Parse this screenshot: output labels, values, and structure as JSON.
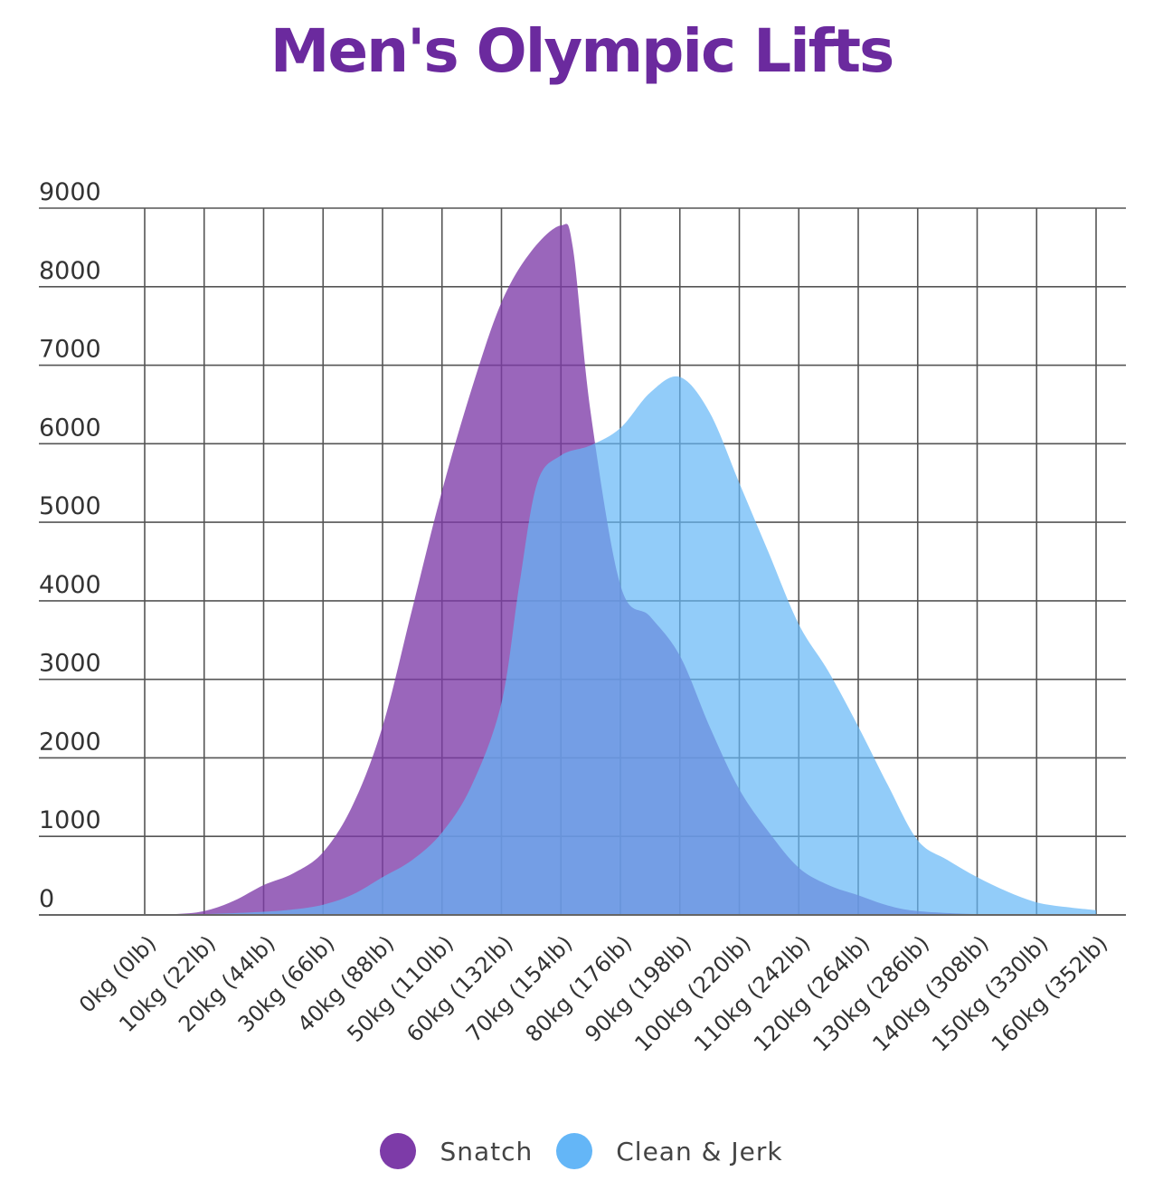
{
  "chart_data": {
    "type": "area",
    "title": "Men's Olympic Lifts",
    "categories": [
      "0kg (0lb)",
      "10kg (22lb)",
      "20kg (44lb)",
      "30kg (66lb)",
      "40kg (88lb)",
      "50kg (110lb)",
      "60kg (132lb)",
      "70kg (154lb)",
      "80kg (176lb)",
      "90kg (198lb)",
      "100kg (220lb)",
      "110kg (242lb)",
      "120kg (264lb)",
      "130kg (286lb)",
      "140kg (308lb)",
      "150kg (330lb)",
      "160kg (352lb)"
    ],
    "x": [
      0,
      10,
      20,
      30,
      40,
      50,
      60,
      70,
      80,
      90,
      100,
      110,
      120,
      130,
      140,
      150,
      160
    ],
    "ylim": [
      0,
      9000
    ],
    "yticks": [
      "0",
      "1000",
      "2000",
      "3000",
      "4000",
      "5000",
      "6000",
      "7000",
      "8000",
      "9000"
    ],
    "grid": true,
    "legend_position": "bottom-center",
    "series": [
      {
        "name": "Snatch",
        "color": "#7d3ba8",
        "points": [
          [
            0,
            0
          ],
          [
            5,
            10
          ],
          [
            10,
            50
          ],
          [
            15,
            180
          ],
          [
            20,
            380
          ],
          [
            25,
            530
          ],
          [
            30,
            800
          ],
          [
            35,
            1400
          ],
          [
            40,
            2400
          ],
          [
            45,
            3900
          ],
          [
            50,
            5400
          ],
          [
            55,
            6700
          ],
          [
            60,
            7800
          ],
          [
            65,
            8450
          ],
          [
            70,
            8780
          ],
          [
            72,
            8500
          ],
          [
            75,
            6400
          ],
          [
            80,
            4200
          ],
          [
            85,
            3800
          ],
          [
            90,
            3300
          ],
          [
            95,
            2400
          ],
          [
            100,
            1600
          ],
          [
            105,
            1050
          ],
          [
            110,
            600
          ],
          [
            115,
            380
          ],
          [
            120,
            250
          ],
          [
            125,
            120
          ],
          [
            130,
            50
          ],
          [
            140,
            10
          ],
          [
            150,
            0
          ],
          [
            160,
            0
          ]
        ]
      },
      {
        "name": "Clean & Jerk",
        "color": "#64b6f7",
        "points": [
          [
            0,
            0
          ],
          [
            10,
            10
          ],
          [
            20,
            40
          ],
          [
            25,
            70
          ],
          [
            30,
            130
          ],
          [
            35,
            260
          ],
          [
            40,
            480
          ],
          [
            45,
            700
          ],
          [
            50,
            1050
          ],
          [
            55,
            1650
          ],
          [
            60,
            2700
          ],
          [
            63,
            4200
          ],
          [
            66,
            5500
          ],
          [
            70,
            5850
          ],
          [
            75,
            5980
          ],
          [
            80,
            6200
          ],
          [
            85,
            6650
          ],
          [
            90,
            6850
          ],
          [
            95,
            6400
          ],
          [
            100,
            5500
          ],
          [
            105,
            4600
          ],
          [
            110,
            3700
          ],
          [
            115,
            3100
          ],
          [
            120,
            2400
          ],
          [
            125,
            1650
          ],
          [
            130,
            950
          ],
          [
            135,
            700
          ],
          [
            140,
            480
          ],
          [
            145,
            300
          ],
          [
            150,
            160
          ],
          [
            155,
            100
          ],
          [
            160,
            60
          ]
        ]
      }
    ]
  }
}
